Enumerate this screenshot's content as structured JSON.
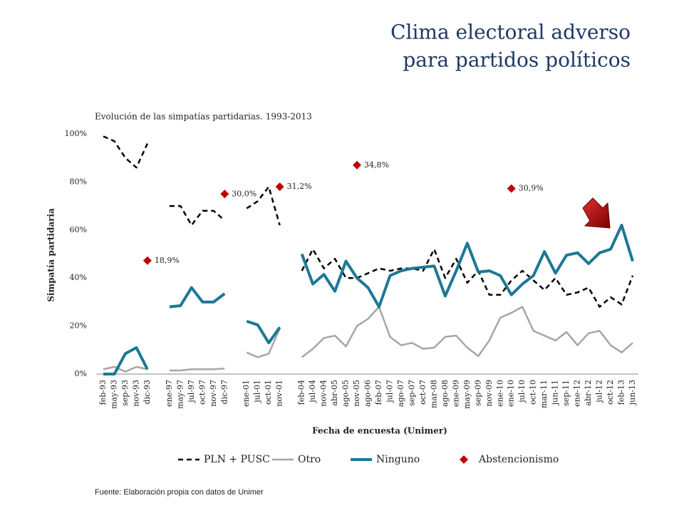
{
  "chart_data": {
    "type": "line",
    "title": [
      "Clima electoral adverso",
      "para partidos políticos"
    ],
    "subtitle": "Evolución de las simpatías partidarias. 1993-2013",
    "y_label": "Simpatía partidaria",
    "x_label": "Fecha de encuesta (Unimer)",
    "source": "Fuente: Elaboración propia con datos de Unimer",
    "categories": [
      "feb-93",
      "may-93",
      "sep-93",
      "nov-93",
      "dic-93",
      null,
      "ene-97",
      "may-97",
      "jul-97",
      "oct-97",
      "nov-97",
      "dic-97",
      null,
      "ene-01",
      "jul-01",
      "oct-01",
      "nov-01",
      null,
      "feb-04",
      "jul-04",
      "nov-04",
      "abr-05",
      "ago-05",
      "nov-05",
      "ago-06",
      "feb-07",
      "jul-07",
      "ago-07",
      "sep-07",
      "oct-07",
      "mar-08",
      "ago-08",
      "ene-09",
      "may-09",
      "sep-09",
      "nov-09",
      "ene-10",
      "ene-10",
      "jul-10",
      "oct-10",
      "mar-11",
      "jun-11",
      "sep-11",
      "ene-12",
      "abr-12",
      "jul-12",
      "oct-12",
      "feb-13",
      "jun-13"
    ],
    "ylim": [
      0,
      100
    ],
    "yticks": [
      {
        "value": 0,
        "label": "0%"
      },
      {
        "value": 20,
        "label": "20%"
      },
      {
        "value": 40,
        "label": "40%"
      },
      {
        "value": 60,
        "label": "60%"
      },
      {
        "value": 80,
        "label": "80%"
      },
      {
        "value": 100,
        "label": "100%"
      }
    ],
    "y2lim": [
      0,
      40
    ],
    "legend": "bottom",
    "series": [
      {
        "name": "PLN + PUSC",
        "color": "#000000",
        "dashed": true,
        "values": [
          99,
          97,
          90,
          86,
          96,
          null,
          70,
          70,
          62,
          68,
          68,
          64,
          null,
          69,
          72,
          78,
          62,
          null,
          43,
          52,
          44,
          48,
          40,
          40,
          42,
          44,
          43,
          44,
          44,
          43,
          52,
          40,
          48,
          38,
          43,
          33,
          33,
          39,
          43,
          39,
          35,
          40,
          33,
          34,
          36,
          28,
          32,
          29,
          41
        ]
      },
      {
        "name": "Otro",
        "color": "#a6a6a6",
        "values": [
          2,
          3,
          1,
          3,
          2,
          null,
          1.5,
          1.5,
          2,
          2,
          2,
          2.3,
          null,
          9,
          7,
          8.5,
          19,
          null,
          7,
          10.5,
          15,
          16,
          11.5,
          20,
          23,
          28,
          15.5,
          12,
          13,
          10.5,
          11,
          15.5,
          16,
          11,
          7.5,
          14,
          23.5,
          25.5,
          28,
          18,
          16,
          14,
          17.5,
          12,
          17,
          18,
          12,
          9,
          13
        ]
      },
      {
        "name": "Ninguno",
        "color": "#1d7896",
        "values": [
          0,
          0,
          8.5,
          11,
          2,
          null,
          28,
          28.5,
          36,
          30,
          30,
          33.5,
          null,
          22,
          20.5,
          13,
          19.5,
          null,
          50,
          37.5,
          41.5,
          34.5,
          47,
          40,
          36,
          28,
          41,
          43,
          44,
          44.5,
          45,
          32.5,
          43,
          54.5,
          42.5,
          43,
          41,
          33,
          37.5,
          41,
          51,
          42,
          49.5,
          50.5,
          46,
          50.5,
          52,
          62,
          47
        ]
      },
      {
        "name": "Abstencionismo",
        "color": "#c00000",
        "axis": "y2",
        "marker": "diamond",
        "values": [
          null,
          null,
          null,
          null,
          18.9,
          null,
          null,
          null,
          null,
          null,
          null,
          30.0,
          null,
          null,
          null,
          null,
          31.2,
          null,
          null,
          null,
          null,
          null,
          null,
          34.8,
          null,
          null,
          null,
          null,
          null,
          null,
          null,
          null,
          null,
          null,
          null,
          null,
          null,
          30.9,
          null,
          null,
          null,
          null,
          null,
          null,
          null,
          null,
          null,
          null,
          null
        ],
        "value_labels": [
          null,
          null,
          null,
          null,
          "18,9%",
          null,
          null,
          null,
          null,
          null,
          null,
          "30,0%",
          null,
          null,
          null,
          null,
          "31,2%",
          null,
          null,
          null,
          null,
          null,
          null,
          "34,8%",
          null,
          null,
          null,
          null,
          null,
          null,
          null,
          null,
          null,
          null,
          null,
          null,
          null,
          "30,9%",
          null,
          null,
          null,
          null,
          null,
          null,
          null,
          null,
          null,
          null,
          null
        ]
      }
    ]
  }
}
